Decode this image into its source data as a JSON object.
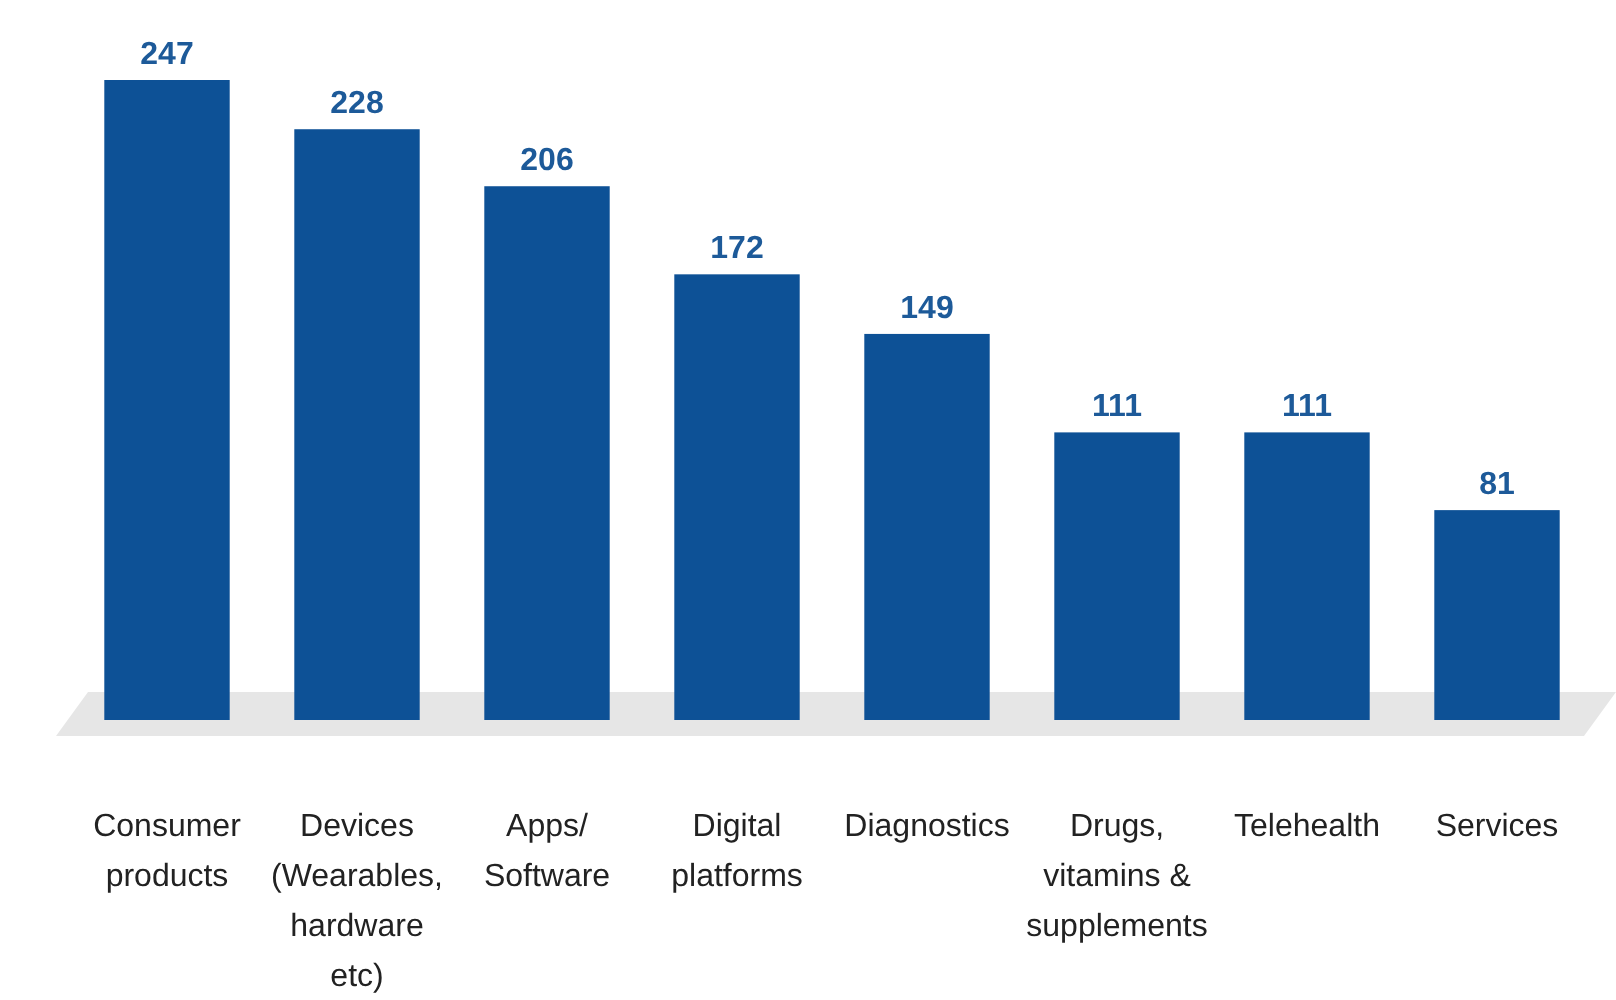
{
  "chart_data": {
    "type": "bar",
    "categories": [
      "Consumer products",
      "Devices (Wearables, hardware etc)",
      "Apps/ Software",
      "Digital platforms",
      "Diagnostics",
      "Drugs, vitamins & supplements",
      "Telehealth",
      "Services"
    ],
    "values": [
      247,
      228,
      206,
      172,
      149,
      111,
      111,
      81
    ],
    "color": "#0d5196",
    "data_labels": true
  }
}
